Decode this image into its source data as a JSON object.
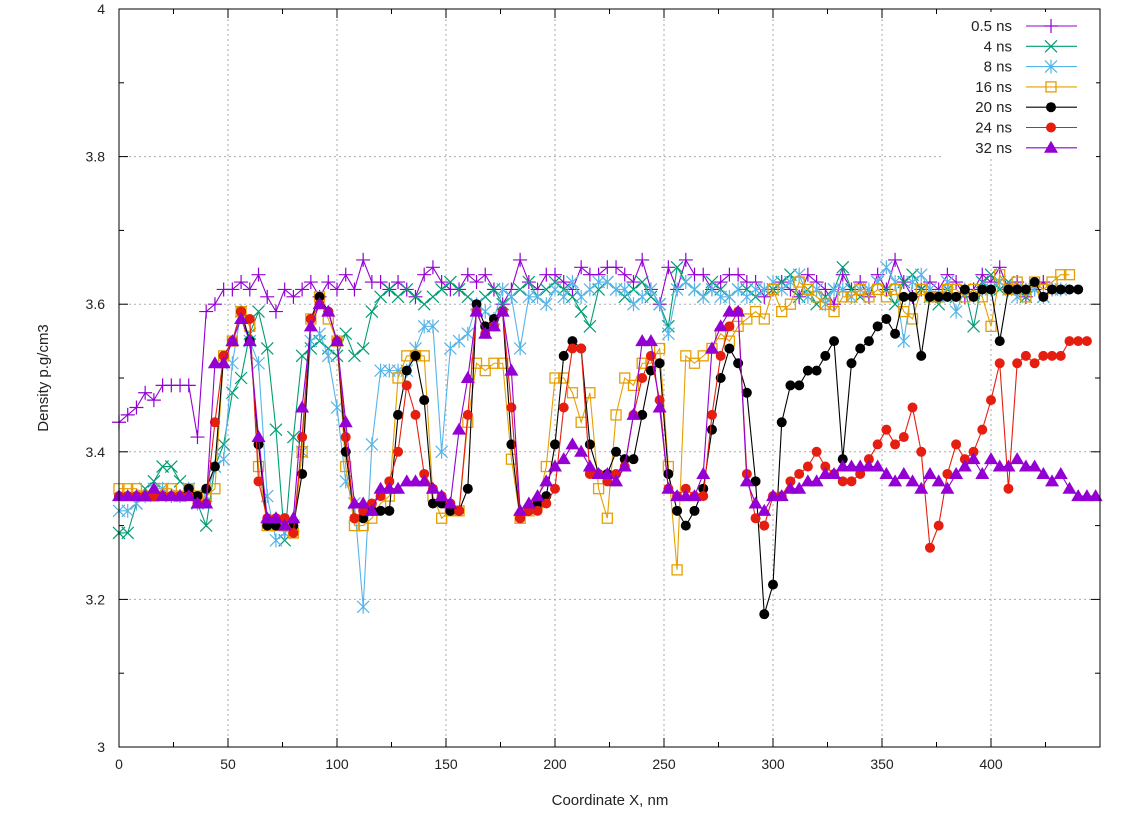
{
  "chart_data": {
    "type": "line",
    "title": "",
    "xlabel": "Coordinate X, nm",
    "ylabel": "Density p.g/cm3",
    "xlim": [
      0,
      450
    ],
    "ylim": [
      3,
      4
    ],
    "xticks": [
      0,
      50,
      100,
      150,
      200,
      250,
      300,
      350,
      400
    ],
    "yticks": [
      3,
      3.2,
      3.4,
      3.6,
      3.8,
      4
    ],
    "xtick_labels": [
      "0",
      "50",
      "100",
      "150",
      "200",
      "250",
      "300",
      "350",
      "400"
    ],
    "ytick_labels": [
      "3",
      "3.2",
      "3.4",
      "3.6",
      "3.8",
      "4"
    ],
    "grid": true,
    "legend_position": "top-right",
    "x_start": 0,
    "x_step": 4,
    "series": [
      {
        "name": "0.5 ns",
        "color": "#9400d3",
        "marker": "plus",
        "values": [
          3.44,
          3.45,
          3.46,
          3.48,
          3.47,
          3.49,
          3.49,
          3.49,
          3.49,
          3.42,
          3.59,
          3.6,
          3.62,
          3.62,
          3.63,
          3.62,
          3.64,
          3.61,
          3.59,
          3.62,
          3.61,
          3.62,
          3.63,
          3.61,
          3.63,
          3.62,
          3.64,
          3.62,
          3.66,
          3.63,
          3.63,
          3.62,
          3.63,
          3.62,
          3.61,
          3.64,
          3.65,
          3.63,
          3.62,
          3.62,
          3.64,
          3.63,
          3.64,
          3.62,
          3.6,
          3.62,
          3.66,
          3.63,
          3.62,
          3.64,
          3.64,
          3.63,
          3.62,
          3.65,
          3.64,
          3.64,
          3.65,
          3.65,
          3.64,
          3.63,
          3.66,
          3.62,
          3.6,
          3.65,
          3.62,
          3.66,
          3.64,
          3.64,
          3.62,
          3.63,
          3.64,
          3.64,
          3.63,
          3.63,
          3.61,
          3.62,
          3.63,
          3.62,
          3.61,
          3.64,
          3.63,
          3.62,
          3.6,
          3.64,
          3.62,
          3.63,
          3.61,
          3.64,
          3.62,
          3.66,
          3.63,
          3.61,
          3.62,
          3.63,
          3.62,
          3.64,
          3.63,
          3.61,
          3.62,
          3.64,
          3.63,
          3.65,
          3.62,
          3.63,
          3.61,
          3.62,
          3.63,
          3.62
        ]
      },
      {
        "name": "4 ns",
        "color": "#009e73",
        "marker": "cross",
        "values": [
          3.29,
          3.29,
          3.33,
          3.35,
          3.36,
          3.38,
          3.38,
          3.36,
          3.35,
          3.33,
          3.3,
          3.38,
          3.41,
          3.48,
          3.5,
          3.56,
          3.59,
          3.54,
          3.43,
          3.28,
          3.42,
          3.53,
          3.54,
          3.55,
          3.54,
          3.53,
          3.56,
          3.53,
          3.54,
          3.59,
          3.61,
          3.62,
          3.61,
          3.62,
          3.61,
          3.6,
          3.61,
          3.62,
          3.63,
          3.62,
          3.61,
          3.6,
          3.61,
          3.62,
          3.6,
          3.61,
          3.62,
          3.63,
          3.61,
          3.62,
          3.63,
          3.62,
          3.61,
          3.59,
          3.57,
          3.62,
          3.63,
          3.62,
          3.61,
          3.62,
          3.63,
          3.61,
          3.6,
          3.57,
          3.65,
          3.63,
          3.62,
          3.61,
          3.63,
          3.62,
          3.61,
          3.62,
          3.62,
          3.61,
          3.62,
          3.62,
          3.63,
          3.64,
          3.61,
          3.62,
          3.6,
          3.61,
          3.62,
          3.65,
          3.62,
          3.61,
          3.62,
          3.63,
          3.62,
          3.6,
          3.63,
          3.64,
          3.62,
          3.61,
          3.6,
          3.62,
          3.61,
          3.62,
          3.57,
          3.63,
          3.64,
          3.62,
          3.63,
          3.62,
          3.61,
          3.62,
          3.61,
          3.62
        ]
      },
      {
        "name": "8 ns",
        "color": "#56b4e9",
        "marker": "star",
        "values": [
          3.32,
          3.32,
          3.33,
          3.34,
          3.35,
          3.35,
          3.34,
          3.34,
          3.35,
          3.33,
          3.34,
          3.38,
          3.39,
          3.52,
          3.59,
          3.55,
          3.52,
          3.34,
          3.28,
          3.29,
          3.3,
          3.4,
          3.55,
          3.56,
          3.53,
          3.46,
          3.36,
          3.33,
          3.19,
          3.41,
          3.51,
          3.51,
          3.51,
          3.51,
          3.54,
          3.57,
          3.57,
          3.4,
          3.54,
          3.55,
          3.56,
          3.6,
          3.59,
          3.58,
          3.62,
          3.61,
          3.54,
          3.61,
          3.61,
          3.6,
          3.62,
          3.61,
          3.63,
          3.61,
          3.62,
          3.63,
          3.63,
          3.62,
          3.62,
          3.6,
          3.61,
          3.62,
          3.6,
          3.56,
          3.62,
          3.63,
          3.62,
          3.61,
          3.62,
          3.61,
          3.61,
          3.62,
          3.61,
          3.62,
          3.62,
          3.63,
          3.62,
          3.63,
          3.64,
          3.61,
          3.62,
          3.6,
          3.62,
          3.62,
          3.61,
          3.62,
          3.62,
          3.63,
          3.65,
          3.63,
          3.55,
          3.63,
          3.64,
          3.62,
          3.61,
          3.63,
          3.59,
          3.62,
          3.61,
          3.62,
          3.62,
          3.63,
          3.62,
          3.61,
          3.62,
          3.62,
          3.61,
          3.62,
          3.62
        ]
      },
      {
        "name": "16 ns",
        "color": "#e69f00",
        "marker": "square",
        "values": [
          3.35,
          3.35,
          3.35,
          3.34,
          3.34,
          3.35,
          3.35,
          3.34,
          3.35,
          3.34,
          3.34,
          3.35,
          3.53,
          3.55,
          3.59,
          3.57,
          3.38,
          3.3,
          3.3,
          3.3,
          3.29,
          3.4,
          3.58,
          3.61,
          3.58,
          3.55,
          3.38,
          3.3,
          3.3,
          3.31,
          3.33,
          3.34,
          3.5,
          3.53,
          3.53,
          3.53,
          3.34,
          3.31,
          3.32,
          3.32,
          3.44,
          3.52,
          3.51,
          3.52,
          3.52,
          3.39,
          3.31,
          3.32,
          3.33,
          3.38,
          3.5,
          3.5,
          3.48,
          3.44,
          3.48,
          3.35,
          3.31,
          3.45,
          3.5,
          3.49,
          3.52,
          3.52,
          3.54,
          3.38,
          3.24,
          3.53,
          3.52,
          3.53,
          3.54,
          3.56,
          3.55,
          3.57,
          3.58,
          3.59,
          3.58,
          3.62,
          3.59,
          3.6,
          3.63,
          3.62,
          3.61,
          3.6,
          3.59,
          3.61,
          3.61,
          3.62,
          3.61,
          3.62,
          3.61,
          3.62,
          3.59,
          3.58,
          3.62,
          3.61,
          3.61,
          3.62,
          3.62,
          3.61,
          3.62,
          3.61,
          3.57,
          3.64,
          3.62,
          3.63,
          3.61,
          3.63,
          3.62,
          3.63,
          3.64,
          3.64
        ]
      },
      {
        "name": "20 ns",
        "color": "#000000",
        "marker": "circle",
        "values": [
          3.34,
          3.34,
          3.34,
          3.34,
          3.34,
          3.34,
          3.34,
          3.34,
          3.35,
          3.34,
          3.35,
          3.38,
          3.53,
          3.55,
          3.59,
          3.55,
          3.41,
          3.3,
          3.3,
          3.31,
          3.3,
          3.37,
          3.58,
          3.61,
          3.59,
          3.55,
          3.4,
          3.31,
          3.31,
          3.32,
          3.32,
          3.32,
          3.45,
          3.51,
          3.53,
          3.47,
          3.33,
          3.33,
          3.32,
          3.32,
          3.35,
          3.6,
          3.57,
          3.58,
          3.59,
          3.41,
          3.31,
          3.32,
          3.33,
          3.34,
          3.41,
          3.53,
          3.55,
          3.54,
          3.41,
          3.37,
          3.37,
          3.4,
          3.39,
          3.39,
          3.45,
          3.51,
          3.52,
          3.37,
          3.32,
          3.3,
          3.32,
          3.35,
          3.43,
          3.5,
          3.54,
          3.52,
          3.48,
          3.36,
          3.18,
          3.22,
          3.44,
          3.49,
          3.49,
          3.51,
          3.51,
          3.53,
          3.55,
          3.39,
          3.52,
          3.54,
          3.55,
          3.57,
          3.58,
          3.56,
          3.61,
          3.61,
          3.53,
          3.61,
          3.61,
          3.61,
          3.61,
          3.62,
          3.61,
          3.62,
          3.62,
          3.55,
          3.62,
          3.62,
          3.62,
          3.63,
          3.61,
          3.62,
          3.62,
          3.62,
          3.62
        ]
      },
      {
        "name": "24 ns",
        "color": "#e51e10",
        "marker": "circle",
        "values": [
          3.34,
          3.34,
          3.34,
          3.34,
          3.34,
          3.34,
          3.34,
          3.34,
          3.34,
          3.33,
          3.33,
          3.44,
          3.53,
          3.55,
          3.59,
          3.58,
          3.36,
          3.31,
          3.31,
          3.31,
          3.29,
          3.42,
          3.58,
          3.6,
          3.59,
          3.55,
          3.42,
          3.31,
          3.32,
          3.33,
          3.34,
          3.36,
          3.4,
          3.49,
          3.45,
          3.37,
          3.35,
          3.34,
          3.33,
          3.32,
          3.45,
          3.59,
          3.56,
          3.57,
          3.59,
          3.46,
          3.31,
          3.32,
          3.32,
          3.33,
          3.35,
          3.46,
          3.54,
          3.54,
          3.37,
          3.37,
          3.36,
          3.37,
          3.38,
          3.45,
          3.5,
          3.53,
          3.47,
          3.35,
          3.34,
          3.35,
          3.34,
          3.34,
          3.45,
          3.53,
          3.57,
          3.59,
          3.37,
          3.31,
          3.3,
          3.34,
          3.34,
          3.36,
          3.37,
          3.38,
          3.4,
          3.38,
          3.37,
          3.36,
          3.36,
          3.37,
          3.39,
          3.41,
          3.43,
          3.41,
          3.42,
          3.46,
          3.4,
          3.27,
          3.3,
          3.37,
          3.41,
          3.39,
          3.4,
          3.43,
          3.47,
          3.52,
          3.35,
          3.52,
          3.53,
          3.52,
          3.53,
          3.53,
          3.53,
          3.55,
          3.55,
          3.55
        ]
      },
      {
        "name": "32 ns",
        "color": "#9400d3",
        "marker": "triangle",
        "values": [
          3.34,
          3.34,
          3.34,
          3.34,
          3.35,
          3.34,
          3.34,
          3.34,
          3.34,
          3.33,
          3.33,
          3.52,
          3.52,
          3.55,
          3.58,
          3.55,
          3.42,
          3.31,
          3.31,
          3.3,
          3.31,
          3.46,
          3.57,
          3.6,
          3.59,
          3.55,
          3.44,
          3.33,
          3.33,
          3.32,
          3.35,
          3.35,
          3.35,
          3.36,
          3.36,
          3.36,
          3.35,
          3.34,
          3.33,
          3.43,
          3.5,
          3.59,
          3.56,
          3.57,
          3.59,
          3.51,
          3.32,
          3.33,
          3.34,
          3.36,
          3.38,
          3.39,
          3.41,
          3.4,
          3.38,
          3.37,
          3.37,
          3.36,
          3.38,
          3.45,
          3.55,
          3.55,
          3.46,
          3.35,
          3.34,
          3.34,
          3.34,
          3.37,
          3.54,
          3.57,
          3.59,
          3.59,
          3.36,
          3.33,
          3.32,
          3.34,
          3.34,
          3.35,
          3.35,
          3.36,
          3.36,
          3.37,
          3.37,
          3.38,
          3.38,
          3.38,
          3.38,
          3.38,
          3.37,
          3.36,
          3.37,
          3.36,
          3.35,
          3.37,
          3.36,
          3.35,
          3.37,
          3.38,
          3.39,
          3.37,
          3.39,
          3.38,
          3.38,
          3.39,
          3.38,
          3.38,
          3.37,
          3.36,
          3.37,
          3.35,
          3.34,
          3.34,
          3.34
        ]
      }
    ]
  }
}
